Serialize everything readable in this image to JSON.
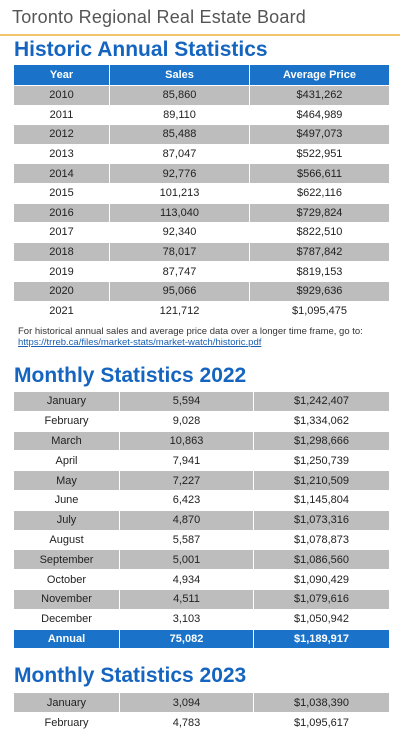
{
  "header": {
    "title": "Toronto Regional Real Estate Board"
  },
  "annual": {
    "title": "Historic Annual Statistics",
    "columns": [
      "Year",
      "Sales",
      "Average Price"
    ],
    "rows": [
      [
        "2010",
        "85,860",
        "$431,262"
      ],
      [
        "2011",
        "89,110",
        "$464,989"
      ],
      [
        "2012",
        "85,488",
        "$497,073"
      ],
      [
        "2013",
        "87,047",
        "$522,951"
      ],
      [
        "2014",
        "92,776",
        "$566,611"
      ],
      [
        "2015",
        "101,213",
        "$622,116"
      ],
      [
        "2016",
        "113,040",
        "$729,824"
      ],
      [
        "2017",
        "92,340",
        "$822,510"
      ],
      [
        "2018",
        "78,017",
        "$787,842"
      ],
      [
        "2019",
        "87,747",
        "$819,153"
      ],
      [
        "2020",
        "95,066",
        "$929,636"
      ],
      [
        "2021",
        "121,712",
        "$1,095,475"
      ]
    ],
    "note": "For historical annual sales and average price data over a longer time frame, go to:",
    "link": "https://trreb.ca/files/market-stats/market-watch/historic.pdf"
  },
  "monthly2022": {
    "title": "Monthly Statistics 2022",
    "rows": [
      [
        "January",
        "5,594",
        "$1,242,407"
      ],
      [
        "February",
        "9,028",
        "$1,334,062"
      ],
      [
        "March",
        "10,863",
        "$1,298,666"
      ],
      [
        "April",
        "7,941",
        "$1,250,739"
      ],
      [
        "May",
        "7,227",
        "$1,210,509"
      ],
      [
        "June",
        "6,423",
        "$1,145,804"
      ],
      [
        "July",
        "4,870",
        "$1,073,316"
      ],
      [
        "August",
        "5,587",
        "$1,078,873"
      ],
      [
        "September",
        "5,001",
        "$1,086,560"
      ],
      [
        "October",
        "4,934",
        "$1,090,429"
      ],
      [
        "November",
        "4,511",
        "$1,079,616"
      ],
      [
        "December",
        "3,103",
        "$1,050,942"
      ]
    ],
    "total": [
      "Annual",
      "75,082",
      "$1,189,917"
    ]
  },
  "monthly2023": {
    "title": "Monthly Statistics 2023",
    "rows": [
      [
        "January",
        "3,094",
        "$1,038,390"
      ],
      [
        "February",
        "4,783",
        "$1,095,617"
      ]
    ]
  }
}
